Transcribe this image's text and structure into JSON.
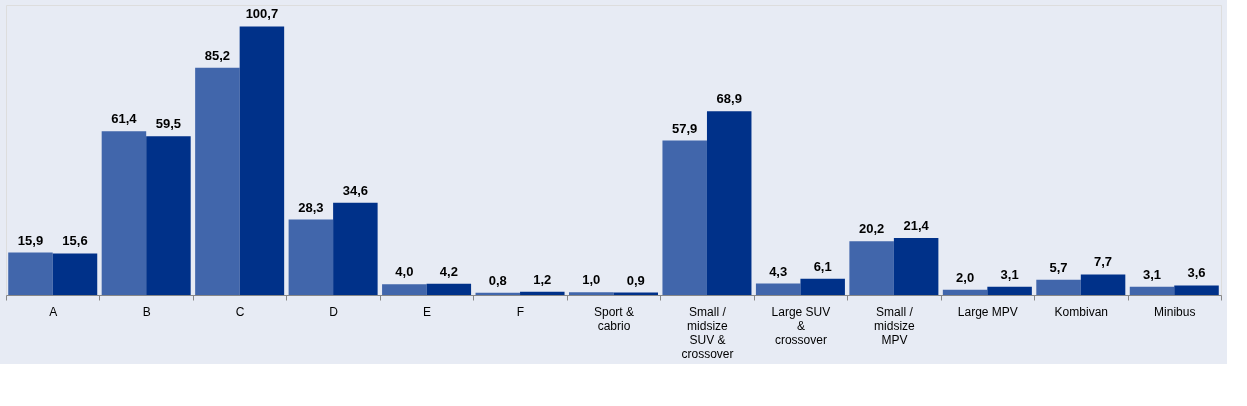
{
  "chart_data": {
    "type": "bar",
    "categories": [
      "A",
      "B",
      "C",
      "D",
      "E",
      "F",
      "Sport & cabrio",
      "Small / midsize SUV & crossover",
      "Large SUV & crossover",
      "Small / midsize MPV",
      "Large MPV",
      "Kombivan",
      "Minibus"
    ],
    "series": [
      {
        "color": "#4166ab",
        "values": [
          15.9,
          61.4,
          85.2,
          28.3,
          4.0,
          0.8,
          1.0,
          57.9,
          4.3,
          20.2,
          2.0,
          5.7,
          3.1
        ],
        "value_labels": [
          "15,9",
          "61,4",
          "85,2",
          "28,3",
          "4,0",
          "0,8",
          "1,0",
          "57,9",
          "4,3",
          "20,2",
          "2,0",
          "5,7",
          "3,1"
        ]
      },
      {
        "color": "#003189",
        "values": [
          15.6,
          59.5,
          100.7,
          34.6,
          4.2,
          1.2,
          0.9,
          68.9,
          6.1,
          21.4,
          3.1,
          7.7,
          3.6
        ],
        "value_labels": [
          "15,6",
          "59,5",
          "100,7",
          "34,6",
          "4,2",
          "1,2",
          "0,9",
          "68,9",
          "6,1",
          "21,4",
          "3,1",
          "7,7",
          "3,6"
        ]
      }
    ],
    "grid": false,
    "legend": false,
    "tick_labels": "x"
  }
}
